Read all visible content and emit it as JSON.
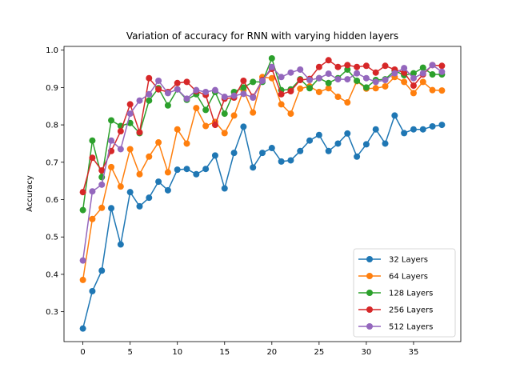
{
  "chart_data": {
    "type": "line",
    "title": "Variation of accuracy for RNN with varying hidden layers",
    "xlabel": "",
    "ylabel": "Accuracy",
    "xlim": [
      -2,
      40
    ],
    "ylim": [
      0.22,
      1.01
    ],
    "xticks": [
      0,
      5,
      10,
      15,
      20,
      25,
      30,
      35
    ],
    "yticks": [
      0.3,
      0.4,
      0.5,
      0.6,
      0.7,
      0.8,
      0.9,
      1.0
    ],
    "ytick_labels": [
      "0.3",
      "0.4",
      "0.5",
      "0.6",
      "0.7",
      "0.8",
      "0.9",
      "1.0"
    ],
    "grid": false,
    "legend_position": "lower-right",
    "markers": "circle",
    "x": [
      0,
      1,
      2,
      3,
      4,
      5,
      6,
      7,
      8,
      9,
      10,
      11,
      12,
      13,
      14,
      15,
      16,
      17,
      18,
      19,
      20,
      21,
      22,
      23,
      24,
      25,
      26,
      27,
      28,
      29,
      30,
      31,
      32,
      33,
      34,
      35,
      36,
      37,
      38
    ],
    "series": [
      {
        "name": "32 Layers",
        "color": "#1f77b4",
        "values": [
          0.255,
          0.355,
          0.41,
          0.577,
          0.48,
          0.62,
          0.582,
          0.605,
          0.648,
          0.625,
          0.68,
          0.682,
          0.668,
          0.682,
          0.718,
          0.63,
          0.725,
          0.795,
          0.686,
          0.725,
          0.738,
          0.702,
          0.705,
          0.73,
          0.758,
          0.773,
          0.73,
          0.75,
          0.777,
          0.715,
          0.748,
          0.788,
          0.75,
          0.825,
          0.778,
          0.788,
          0.788,
          0.796,
          0.8
        ]
      },
      {
        "name": "64 Layers",
        "color": "#ff7f0e",
        "values": [
          0.385,
          0.548,
          0.578,
          0.687,
          0.635,
          0.735,
          0.668,
          0.715,
          0.753,
          0.673,
          0.788,
          0.75,
          0.845,
          0.797,
          0.808,
          0.778,
          0.825,
          0.893,
          0.833,
          0.928,
          0.925,
          0.855,
          0.83,
          0.897,
          0.903,
          0.888,
          0.898,
          0.875,
          0.86,
          0.917,
          0.897,
          0.898,
          0.903,
          0.928,
          0.915,
          0.885,
          0.915,
          0.893,
          0.892
        ]
      },
      {
        "name": "128 Layers",
        "color": "#2ca02c",
        "values": [
          0.572,
          0.758,
          0.66,
          0.812,
          0.797,
          0.805,
          0.778,
          0.865,
          0.898,
          0.852,
          0.895,
          0.867,
          0.882,
          0.84,
          0.888,
          0.83,
          0.888,
          0.9,
          0.915,
          0.915,
          0.978,
          0.893,
          0.895,
          0.922,
          0.898,
          0.925,
          0.912,
          0.925,
          0.948,
          0.918,
          0.9,
          0.92,
          0.922,
          0.945,
          0.933,
          0.938,
          0.953,
          0.935,
          0.935
        ]
      },
      {
        "name": "256 Layers",
        "color": "#d62728",
        "values": [
          0.62,
          0.712,
          0.678,
          0.73,
          0.783,
          0.855,
          0.78,
          0.925,
          0.895,
          0.888,
          0.912,
          0.915,
          0.89,
          0.88,
          0.8,
          0.87,
          0.873,
          0.918,
          0.875,
          0.92,
          0.95,
          0.882,
          0.89,
          0.92,
          0.923,
          0.955,
          0.973,
          0.955,
          0.96,
          0.955,
          0.958,
          0.94,
          0.958,
          0.948,
          0.94,
          0.905,
          0.935,
          0.96,
          0.958
        ]
      },
      {
        "name": "512 Layers",
        "color": "#9467bd",
        "values": [
          0.437,
          0.622,
          0.64,
          0.758,
          0.735,
          0.83,
          0.865,
          0.882,
          0.918,
          0.885,
          0.895,
          0.87,
          0.893,
          0.888,
          0.893,
          0.875,
          0.878,
          0.883,
          0.873,
          0.918,
          0.955,
          0.928,
          0.94,
          0.948,
          0.92,
          0.925,
          0.937,
          0.922,
          0.922,
          0.938,
          0.925,
          0.915,
          0.92,
          0.938,
          0.952,
          0.925,
          0.938,
          0.96,
          0.942
        ]
      }
    ]
  }
}
